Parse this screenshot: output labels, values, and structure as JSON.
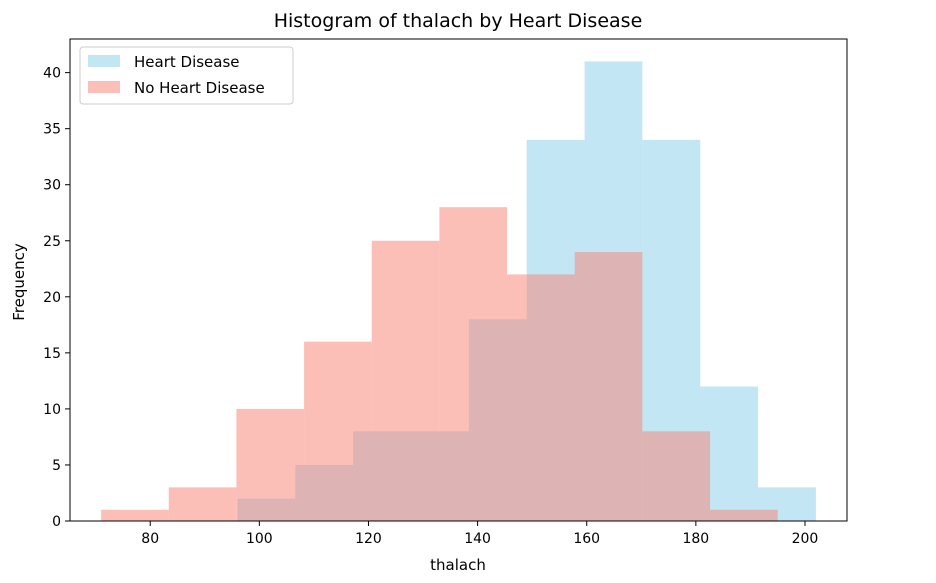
{
  "chart_data": {
    "type": "bar",
    "subtype": "overlapping-histogram",
    "title": "Histogram of thalach by Heart Disease",
    "xlabel": "thalach",
    "ylabel": "Frequency",
    "xlim": [
      65.3,
      207.7
    ],
    "ylim": [
      0,
      43
    ],
    "xticks": [
      80,
      100,
      120,
      140,
      160,
      180,
      200
    ],
    "yticks": [
      0,
      5,
      10,
      15,
      20,
      25,
      30,
      35,
      40
    ],
    "grid": false,
    "legend_position": "top-left",
    "series": [
      {
        "name": "Heart Disease",
        "color": "#87CEEB",
        "opacity": 0.5,
        "bin_edges": [
          96.0,
          106.6,
          117.2,
          127.8,
          138.4,
          149.0,
          159.6,
          170.2,
          180.8,
          191.4,
          202.0
        ],
        "values": [
          2,
          5,
          8,
          8,
          18,
          34,
          41,
          34,
          12,
          3
        ]
      },
      {
        "name": "No Heart Disease",
        "color": "#FA8072",
        "opacity": 0.5,
        "bin_edges": [
          71.0,
          83.4,
          95.8,
          108.2,
          120.6,
          133.0,
          145.4,
          157.8,
          170.2,
          182.6,
          195.0
        ],
        "values": [
          1,
          3,
          10,
          16,
          25,
          28,
          22,
          24,
          8,
          1
        ]
      }
    ]
  }
}
